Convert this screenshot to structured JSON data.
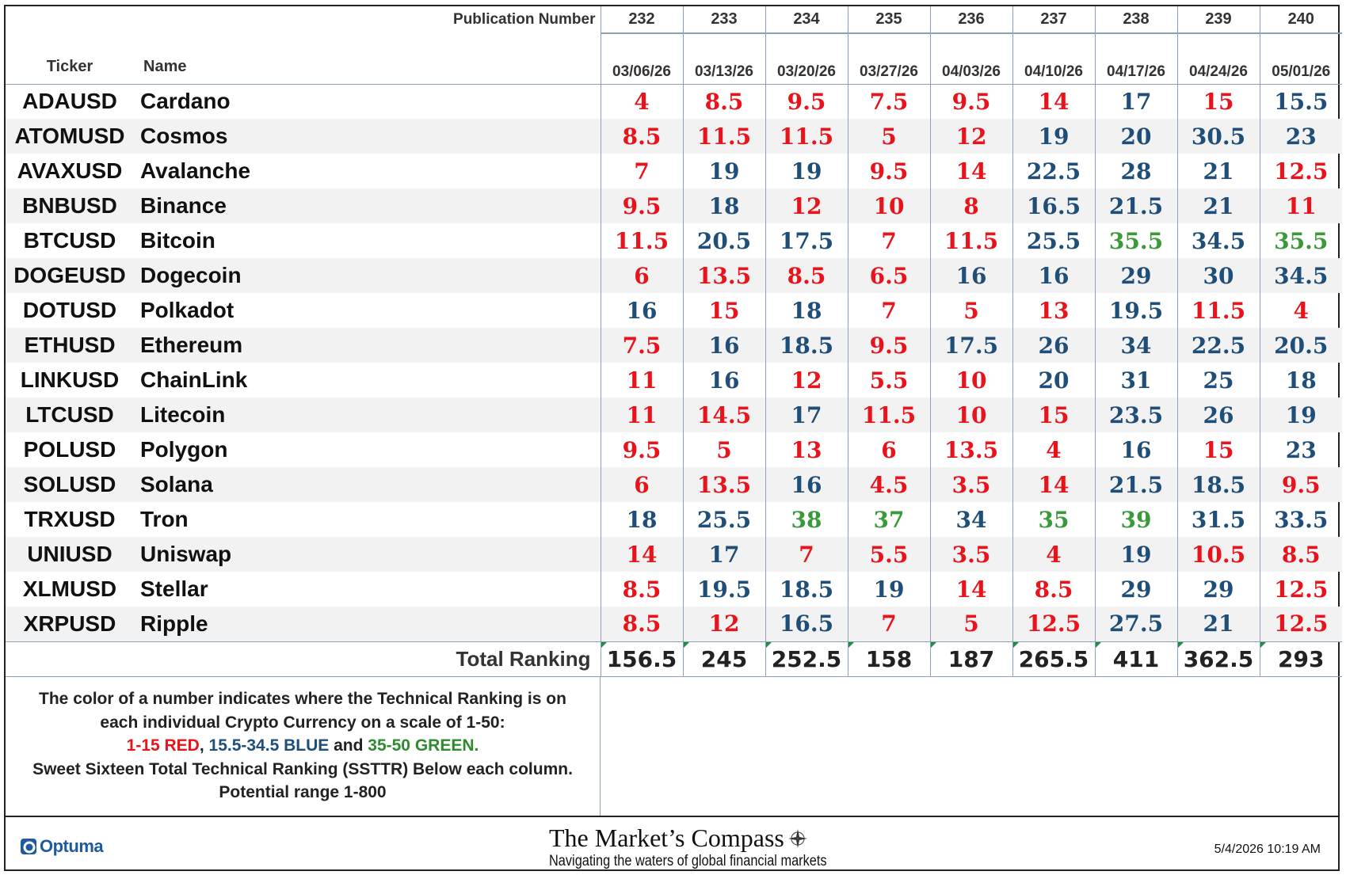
{
  "header": {
    "publication_label": "Publication Number",
    "publication_numbers": [
      "232",
      "233",
      "234",
      "235",
      "236",
      "237",
      "238",
      "239",
      "240"
    ],
    "ticker_label": "Ticker",
    "name_label": "Name",
    "dates": [
      "03/06/26",
      "03/13/26",
      "03/20/26",
      "03/27/26",
      "04/03/26",
      "04/10/26",
      "04/17/26",
      "04/24/26",
      "05/01/26"
    ]
  },
  "colors": {
    "red": "#e8141c",
    "blue": "#1f4e79",
    "green": "#3a9a3a"
  },
  "rows": [
    {
      "ticker": "ADAUSD",
      "name": "Cardano",
      "values": [
        "4",
        "8.5",
        "9.5",
        "7.5",
        "9.5",
        "14",
        "17",
        "15",
        "15.5"
      ]
    },
    {
      "ticker": "ATOMUSD",
      "name": "Cosmos",
      "values": [
        "8.5",
        "11.5",
        "11.5",
        "5",
        "12",
        "19",
        "20",
        "30.5",
        "23"
      ]
    },
    {
      "ticker": "AVAXUSD",
      "name": "Avalanche",
      "values": [
        "7",
        "19",
        "19",
        "9.5",
        "14",
        "22.5",
        "28",
        "21",
        "12.5"
      ]
    },
    {
      "ticker": "BNBUSD",
      "name": "Binance",
      "values": [
        "9.5",
        "18",
        "12",
        "10",
        "8",
        "16.5",
        "21.5",
        "21",
        "11"
      ]
    },
    {
      "ticker": "BTCUSD",
      "name": "Bitcoin",
      "values": [
        "11.5",
        "20.5",
        "17.5",
        "7",
        "11.5",
        "25.5",
        "35.5",
        "34.5",
        "35.5"
      ]
    },
    {
      "ticker": "DOGEUSD",
      "name": "Dogecoin",
      "values": [
        "6",
        "13.5",
        "8.5",
        "6.5",
        "16",
        "16",
        "29",
        "30",
        "34.5"
      ]
    },
    {
      "ticker": "DOTUSD",
      "name": "Polkadot",
      "values": [
        "16",
        "15",
        "18",
        "7",
        "5",
        "13",
        "19.5",
        "11.5",
        "4"
      ]
    },
    {
      "ticker": "ETHUSD",
      "name": "Ethereum",
      "values": [
        "7.5",
        "16",
        "18.5",
        "9.5",
        "17.5",
        "26",
        "34",
        "22.5",
        "20.5"
      ]
    },
    {
      "ticker": "LINKUSD",
      "name": "ChainLink",
      "values": [
        "11",
        "16",
        "12",
        "5.5",
        "10",
        "20",
        "31",
        "25",
        "18"
      ]
    },
    {
      "ticker": "LTCUSD",
      "name": "Litecoin",
      "values": [
        "11",
        "14.5",
        "17",
        "11.5",
        "10",
        "15",
        "23.5",
        "26",
        "19"
      ]
    },
    {
      "ticker": "POLUSD",
      "name": "Polygon",
      "values": [
        "9.5",
        "5",
        "13",
        "6",
        "13.5",
        "4",
        "16",
        "15",
        "23"
      ]
    },
    {
      "ticker": "SOLUSD",
      "name": "Solana",
      "values": [
        "6",
        "13.5",
        "16",
        "4.5",
        "3.5",
        "14",
        "21.5",
        "18.5",
        "9.5"
      ]
    },
    {
      "ticker": "TRXUSD",
      "name": "Tron",
      "values": [
        "18",
        "25.5",
        "38",
        "37",
        "34",
        "35",
        "39",
        "31.5",
        "33.5"
      ]
    },
    {
      "ticker": "UNIUSD",
      "name": "Uniswap",
      "values": [
        "14",
        "17",
        "7",
        "5.5",
        "3.5",
        "4",
        "19",
        "10.5",
        "8.5"
      ]
    },
    {
      "ticker": "XLMUSD",
      "name": "Stellar",
      "values": [
        "8.5",
        "19.5",
        "18.5",
        "19",
        "14",
        "8.5",
        "29",
        "29",
        "12.5"
      ]
    },
    {
      "ticker": "XRPUSD",
      "name": "Ripple",
      "values": [
        "8.5",
        "12",
        "16.5",
        "7",
        "5",
        "12.5",
        "27.5",
        "21",
        "12.5"
      ]
    }
  ],
  "total": {
    "label": "Total Ranking",
    "values": [
      "156.5",
      "245",
      "252.5",
      "158",
      "187",
      "265.5",
      "411",
      "362.5",
      "293"
    ]
  },
  "legend": {
    "line1": "The color of a number indicates where the Technical Ranking is on",
    "line2": "each individual Crypto Currency on a scale of 1-50:",
    "red_part": "1-15 RED",
    "sep1": ", ",
    "blue_part": "15.5-34.5 BLUE",
    "sep2": " and ",
    "green_part": "35-50 GREEN.",
    "line4": "Sweet Sixteen Total Technical Ranking (SSTTR) Below each column.",
    "line5": "Potential range 1-800"
  },
  "footer": {
    "optuma_label": "Optuma",
    "brand_title": "The Market’s Compass",
    "brand_subtitle": "Navigating the waters of global financial markets",
    "timestamp": "5/4/2026 10:19 AM"
  }
}
